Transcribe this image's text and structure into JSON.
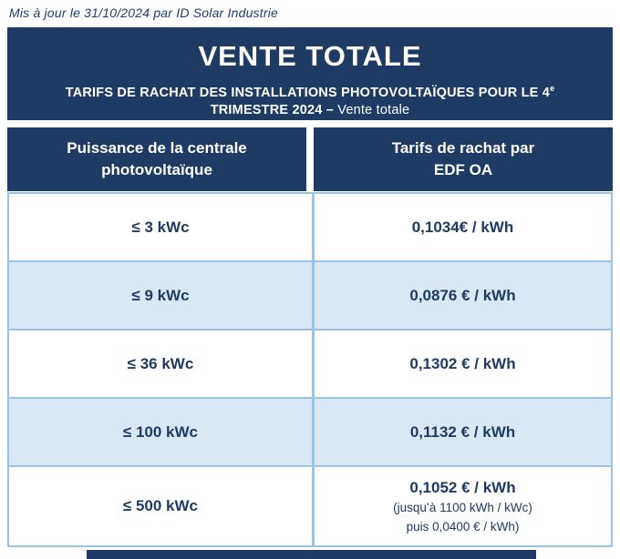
{
  "page": {
    "updated_note": "Mis à jour le 31/10/2024 par ID Solar Industrie"
  },
  "header": {
    "title": "VENTE TOTALE",
    "subtitle_line1": "TARIFS DE RACHAT DES INSTALLATIONS PHOTOVOLTAÏQUES POUR LE 4",
    "subtitle_superscript": "e",
    "subtitle_line2_bold": "TRIMESTRE 2024 – ",
    "subtitle_line2_regular": "Vente totale"
  },
  "colors": {
    "navy": "#1f3a64",
    "row_light_blue": "#dae7f5",
    "border_blue": "#9cc2e5"
  },
  "table": {
    "column1_header_line1": "Puissance de la centrale",
    "column1_header_line2": "photovoltaïque",
    "column2_header_line1": "Tarifs de rachat par",
    "column2_header_line2": "EDF OA",
    "rows": [
      {
        "power": "≤ 3 kWc",
        "tariff": "0,1034€ / kWh"
      },
      {
        "power": "≤ 9 kWc",
        "tariff": "0,0876 € / kWh"
      },
      {
        "power": "≤ 36 kWc",
        "tariff": "0,1302 € / kWh"
      },
      {
        "power": "≤ 100 kWc",
        "tariff": "0,1132 € / kWh"
      },
      {
        "power": "≤ 500 kWc",
        "tariff": "0,1052 € / kWh",
        "notes": [
          "(jusqu’à 1100 kWh / kWc)",
          "puis 0,0400 € / kWh)"
        ]
      }
    ]
  }
}
